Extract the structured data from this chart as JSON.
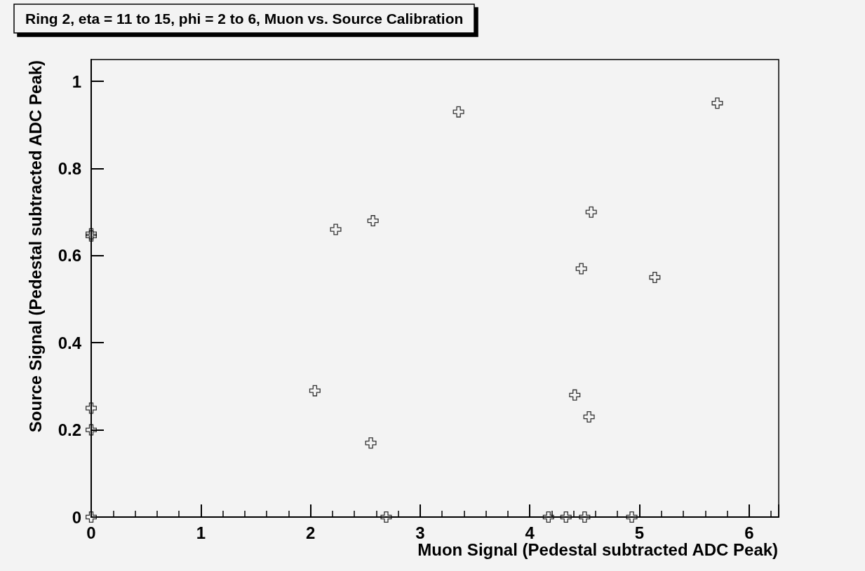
{
  "chart_data": {
    "type": "scatter",
    "title": "Ring 2, eta = 11 to 15, phi = 2 to 6, Muon vs. Source Calibration",
    "xlabel": "Muon Signal (Pedestal subtracted ADC Peak)",
    "ylabel": "Source Signal (Pedestal subtracted ADC Peak)",
    "x": [
      0,
      0,
      0,
      0,
      0,
      2.04,
      2.23,
      2.57,
      2.55,
      2.69,
      3.35,
      4.17,
      4.33,
      4.5,
      4.93,
      4.47,
      4.56,
      4.41,
      4.54,
      5.14,
      5.71
    ],
    "series": [
      {
        "color": "#000000",
        "values": [
          0.65,
          0.645,
          0.25,
          0.2,
          0,
          0.29,
          0.66,
          0.68,
          0.17,
          0,
          0.93,
          0,
          0,
          0,
          0,
          0.57,
          0.7,
          0.28,
          0.23,
          0.55,
          0.95
        ]
      }
    ],
    "xlim": [
      0,
      6.27
    ],
    "xticks": [
      0,
      1,
      2,
      3,
      4,
      5,
      6
    ],
    "ylim": [
      0,
      1.05
    ],
    "yticks": [
      0,
      0.2,
      0.4,
      0.6,
      0.8,
      1
    ],
    "grid": false,
    "marker": "cross"
  }
}
